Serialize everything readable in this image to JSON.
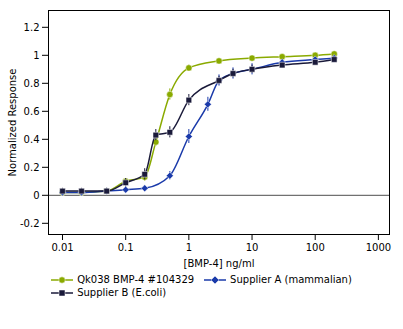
{
  "chart_data": {
    "type": "line",
    "xlabel": "[BMP-4] ng/ml",
    "ylabel": "Normalized Response",
    "log": "x",
    "xlim": [
      0.006,
      1500
    ],
    "ylim": [
      -0.28,
      1.32
    ],
    "xticks": [
      0.01,
      0.1,
      1,
      10,
      100,
      1000
    ],
    "yticks": [
      -0.2,
      0,
      0.2,
      0.4,
      0.6,
      0.8,
      1,
      1.2
    ],
    "hlines": [
      0
    ],
    "grid": false,
    "legend": "bottom",
    "series": [
      {
        "name": "Qk038 BMP-4 #104329",
        "color": "#8aaa00",
        "marker": "circle",
        "line_style": "solid",
        "x": [
          0.01,
          0.02,
          0.05,
          0.1,
          0.2,
          0.3,
          0.5,
          1.0,
          3.0,
          10.0,
          30.0,
          100.0,
          200.0
        ],
        "values": [
          0.02,
          0.02,
          0.03,
          0.1,
          0.13,
          0.38,
          0.72,
          0.91,
          0.96,
          0.98,
          0.99,
          1.0,
          1.01
        ],
        "errors": [
          0.02,
          0.02,
          0.02,
          0.02,
          0.03,
          0.03,
          0.04,
          0.02,
          0.01,
          0.01,
          0.01,
          0.01,
          0.01
        ]
      },
      {
        "name": "Supplier A (mammalian)",
        "color": "#1a3aaa",
        "marker": "diamond",
        "line_style": "solid",
        "x": [
          0.01,
          0.02,
          0.05,
          0.1,
          0.2,
          0.5,
          1.0,
          2.0,
          3.0,
          5.0,
          10.0,
          30.0,
          100.0,
          200.0
        ],
        "values": [
          0.02,
          0.02,
          0.03,
          0.04,
          0.05,
          0.14,
          0.42,
          0.65,
          0.82,
          0.87,
          0.9,
          0.95,
          0.97,
          0.98
        ],
        "errors": [
          0.02,
          0.02,
          0.01,
          0.01,
          0.02,
          0.03,
          0.05,
          0.05,
          0.04,
          0.04,
          0.04,
          0.02,
          0.01,
          0.01
        ]
      },
      {
        "name": "Supplier B (E.coli)",
        "color": "#1a1a3a",
        "marker": "square",
        "line_style": "solid",
        "x": [
          0.01,
          0.02,
          0.05,
          0.1,
          0.2,
          0.3,
          0.5,
          1.0,
          3.0,
          5.0,
          10.0,
          30.0,
          100.0,
          200.0
        ],
        "values": [
          0.03,
          0.03,
          0.03,
          0.09,
          0.15,
          0.43,
          0.45,
          0.68,
          0.82,
          0.87,
          0.9,
          0.93,
          0.95,
          0.97
        ],
        "errors": [
          0.02,
          0.02,
          0.02,
          0.03,
          0.04,
          0.04,
          0.04,
          0.04,
          0.03,
          0.03,
          0.03,
          0.02,
          0.01,
          0.01
        ]
      }
    ]
  }
}
